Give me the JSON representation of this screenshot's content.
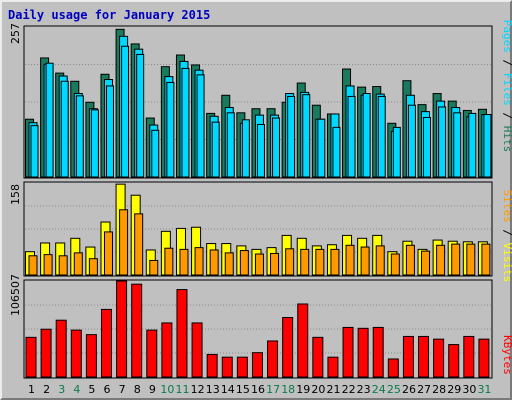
{
  "header": {
    "title": "Daily usage for January 2015"
  },
  "colors": {
    "background": "#c0c0c0",
    "plot": "#c0c0c0",
    "hits": "#1a7a5e",
    "files": "#00d8ff",
    "pages": "#00d8ff",
    "visits": "#ffff00",
    "sites": "#ff9900",
    "kbytes": "#ff0000",
    "title": "#0000c0",
    "weekend_label": "#0a7a4a",
    "weekday_label": "#000000"
  },
  "chart_data": [
    {
      "type": "bar",
      "panel": "top",
      "ymax_label": "257",
      "ylim": [
        0,
        257
      ],
      "right_label": [
        "Pages",
        "Files",
        "Hits"
      ],
      "right_colors": [
        "#00d8ff",
        "#00d8ff",
        "#1a7a5e"
      ],
      "categories": [
        "1",
        "2",
        "3",
        "4",
        "5",
        "6",
        "7",
        "8",
        "9",
        "10",
        "11",
        "12",
        "13",
        "14",
        "15",
        "16",
        "17",
        "18",
        "19",
        "20",
        "21",
        "22",
        "23",
        "24",
        "25",
        "26",
        "27",
        "28",
        "29",
        "30",
        "31"
      ],
      "series": [
        {
          "name": "Hits",
          "values": [
            99,
            204,
            178,
            164,
            128,
            176,
            253,
            228,
            101,
            189,
            209,
            192,
            109,
            140,
            110,
            117,
            117,
            128,
            161,
            123,
            108,
            185,
            154,
            155,
            92,
            165,
            124,
            143,
            130,
            114,
            116
          ]
        },
        {
          "name": "Files",
          "values": [
            93,
            193,
            173,
            143,
            117,
            167,
            241,
            219,
            89,
            172,
            198,
            183,
            104,
            119,
            92,
            106,
            106,
            143,
            145,
            99,
            108,
            156,
            140,
            142,
            78,
            140,
            112,
            130,
            119,
            103,
            107
          ]
        },
        {
          "name": "Pages",
          "values": [
            88,
            195,
            164,
            139,
            115,
            156,
            224,
            210,
            80,
            162,
            186,
            175,
            94,
            110,
            98,
            90,
            101,
            138,
            141,
            99,
            85,
            138,
            143,
            138,
            85,
            123,
            102,
            120,
            110,
            109,
            107
          ]
        }
      ]
    },
    {
      "type": "bar",
      "panel": "middle",
      "ymax_label": "158",
      "ylim": [
        0,
        158
      ],
      "right_label": [
        "Sites",
        "Visits"
      ],
      "right_colors": [
        "#ff9900",
        "#ffff00"
      ],
      "categories": [
        "1",
        "2",
        "3",
        "4",
        "5",
        "6",
        "7",
        "8",
        "9",
        "10",
        "11",
        "12",
        "13",
        "14",
        "15",
        "16",
        "17",
        "18",
        "19",
        "20",
        "21",
        "22",
        "23",
        "24",
        "25",
        "26",
        "27",
        "28",
        "29",
        "30",
        "31"
      ],
      "series": [
        {
          "name": "Visits",
          "values": [
            40,
            55,
            55,
            63,
            48,
            91,
            156,
            137,
            43,
            75,
            80,
            82,
            54,
            54,
            50,
            44,
            47,
            68,
            63,
            50,
            52,
            68,
            63,
            68,
            40,
            58,
            44,
            60,
            58,
            57,
            57
          ]
        },
        {
          "name": "Sites",
          "values": [
            33,
            35,
            33,
            38,
            28,
            74,
            112,
            105,
            25,
            46,
            44,
            47,
            43,
            38,
            42,
            36,
            37,
            45,
            44,
            44,
            44,
            51,
            48,
            50,
            36,
            51,
            41,
            51,
            53,
            53,
            53
          ]
        }
      ]
    },
    {
      "type": "bar",
      "panel": "bottom",
      "ymax_label": "106507",
      "ylim": [
        0,
        106507
      ],
      "right_label": [
        "KBytes"
      ],
      "right_colors": [
        "#ff0000"
      ],
      "categories": [
        "1",
        "2",
        "3",
        "4",
        "5",
        "6",
        "7",
        "8",
        "9",
        "10",
        "11",
        "12",
        "13",
        "14",
        "15",
        "16",
        "17",
        "18",
        "19",
        "20",
        "21",
        "22",
        "23",
        "24",
        "25",
        "26",
        "27",
        "28",
        "29",
        "30",
        "31"
      ],
      "series": [
        {
          "name": "KBytes",
          "values": [
            44000,
            53000,
            63000,
            52000,
            47000,
            75000,
            106507,
            103000,
            52000,
            60000,
            97000,
            60000,
            25000,
            22000,
            22000,
            27000,
            40000,
            66000,
            81000,
            44000,
            22000,
            55000,
            54000,
            55000,
            20000,
            45000,
            45000,
            42000,
            36000,
            45000,
            42000
          ]
        }
      ]
    }
  ],
  "x_labels": {
    "values": [
      "1",
      "2",
      "3",
      "4",
      "5",
      "6",
      "7",
      "8",
      "9",
      "10",
      "11",
      "12",
      "13",
      "14",
      "15",
      "16",
      "17",
      "18",
      "19",
      "20",
      "21",
      "22",
      "23",
      "24",
      "25",
      "26",
      "27",
      "28",
      "29",
      "30",
      "31"
    ],
    "weekend": [
      false,
      false,
      true,
      true,
      false,
      false,
      false,
      false,
      false,
      true,
      true,
      false,
      false,
      false,
      false,
      false,
      true,
      true,
      false,
      false,
      false,
      false,
      false,
      true,
      true,
      false,
      false,
      false,
      false,
      false,
      true
    ]
  }
}
